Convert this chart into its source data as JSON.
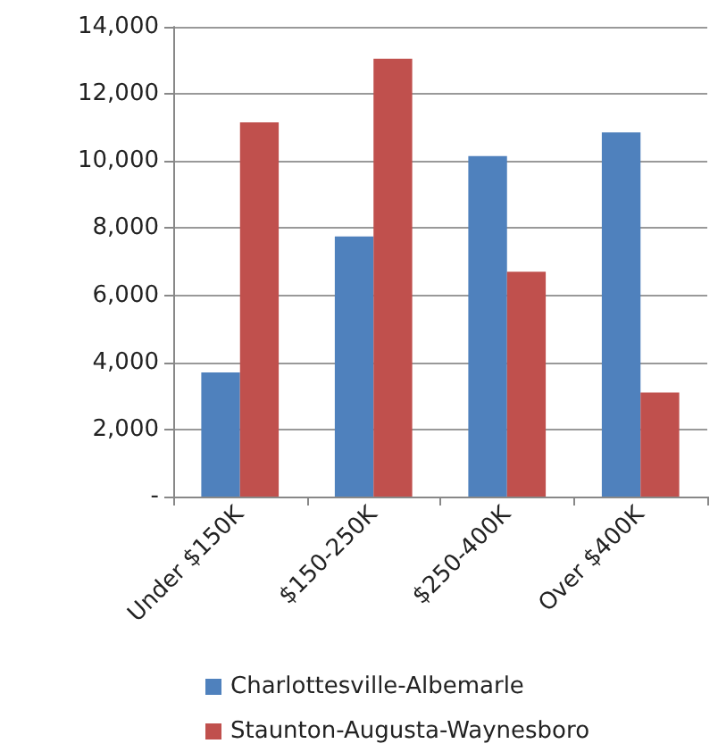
{
  "chart_data": {
    "type": "bar",
    "categories": [
      "Under $150K",
      "$150-250K",
      "$250-400K",
      "Over $400K"
    ],
    "series": [
      {
        "name": "Charlottesville-Albemarle",
        "color": "#4f81bd",
        "values": [
          3700,
          7750,
          10150,
          10850
        ]
      },
      {
        "name": "Staunton-Augusta-Waynesboro",
        "color": "#c0504d",
        "values": [
          11150,
          13050,
          6700,
          3100
        ]
      }
    ],
    "ylim": [
      0,
      14000
    ],
    "yticks": [
      {
        "value": 0,
        "label": "-"
      },
      {
        "value": 2000,
        "label": "2,000"
      },
      {
        "value": 4000,
        "label": "4,000"
      },
      {
        "value": 6000,
        "label": "6,000"
      },
      {
        "value": 8000,
        "label": "8,000"
      },
      {
        "value": 10000,
        "label": "10,000"
      },
      {
        "value": 12000,
        "label": "12,000"
      },
      {
        "value": 14000,
        "label": "14,000"
      }
    ],
    "grid": "y",
    "legend": "bottom"
  }
}
